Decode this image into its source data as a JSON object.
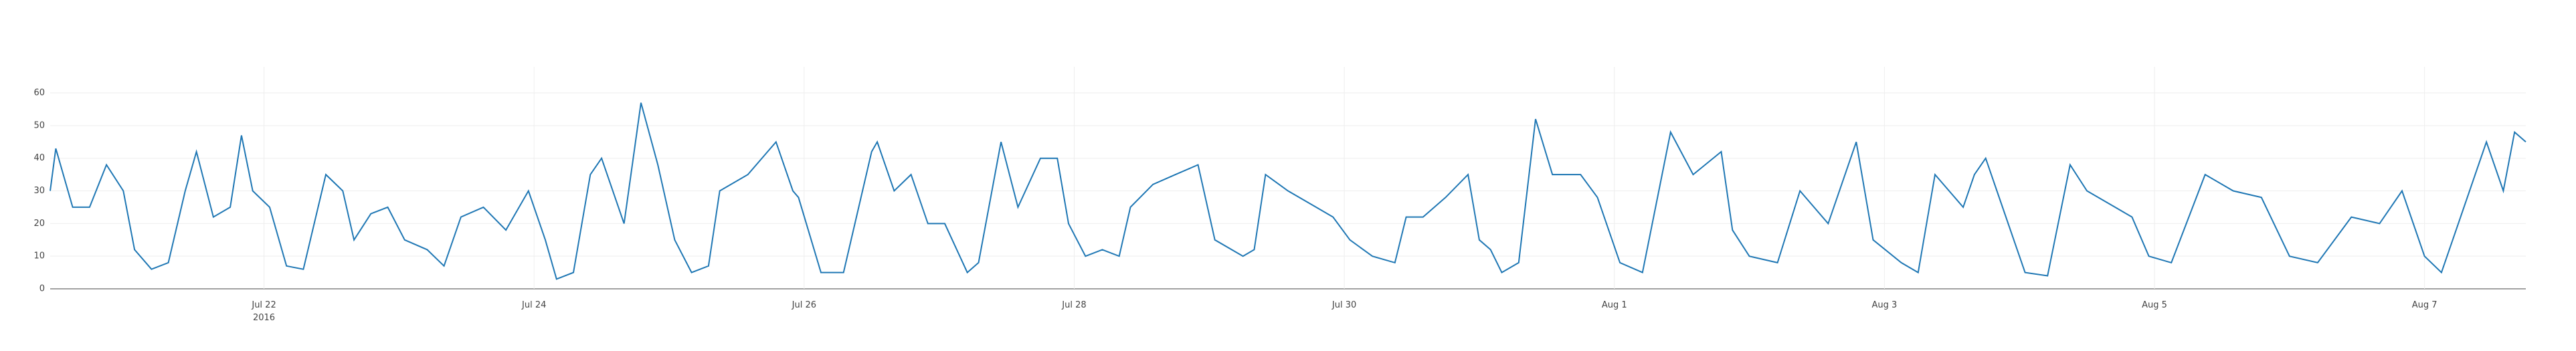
{
  "chart_data": {
    "type": "line",
    "color": "#1f77b4",
    "grid": true,
    "x": [
      "2016-07-20 10:00",
      "2016-07-20 11:00",
      "2016-07-20 14:00",
      "2016-07-20 17:00",
      "2016-07-20 20:00",
      "2016-07-20 23:00",
      "2016-07-21 01:00",
      "2016-07-21 04:00",
      "2016-07-21 07:00",
      "2016-07-21 10:00",
      "2016-07-21 12:00",
      "2016-07-21 15:00",
      "2016-07-21 18:00",
      "2016-07-21 20:00",
      "2016-07-21 22:00",
      "2016-07-22 01:00",
      "2016-07-22 04:00",
      "2016-07-22 07:00",
      "2016-07-22 11:00",
      "2016-07-22 14:00",
      "2016-07-22 16:00",
      "2016-07-22 19:00",
      "2016-07-22 22:00",
      "2016-07-23 01:00",
      "2016-07-23 05:00",
      "2016-07-23 08:00",
      "2016-07-23 11:00",
      "2016-07-23 15:00",
      "2016-07-23 19:00",
      "2016-07-23 23:00",
      "2016-07-24 02:00",
      "2016-07-24 04:00",
      "2016-07-24 07:00",
      "2016-07-24 10:00",
      "2016-07-24 12:00",
      "2016-07-24 16:00",
      "2016-07-24 19:00",
      "2016-07-24 22:00",
      "2016-07-25 01:00",
      "2016-07-25 04:00",
      "2016-07-25 07:00",
      "2016-07-25 09:00",
      "2016-07-25 14:00",
      "2016-07-25 19:00",
      "2016-07-25 22:00",
      "2016-07-25 23:00",
      "2016-07-26 03:00",
      "2016-07-26 07:00",
      "2016-07-26 12:00",
      "2016-07-26 13:00",
      "2016-07-26 16:00",
      "2016-07-26 19:00",
      "2016-07-26 22:00",
      "2016-07-27 01:00",
      "2016-07-27 05:00",
      "2016-07-27 07:00",
      "2016-07-27 11:00",
      "2016-07-27 14:00",
      "2016-07-27 18:00",
      "2016-07-27 21:00",
      "2016-07-27 23:00",
      "2016-07-28 02:00",
      "2016-07-28 05:00",
      "2016-07-28 08:00",
      "2016-07-28 10:00",
      "2016-07-28 14:00",
      "2016-07-28 18:00",
      "2016-07-28 22:00",
      "2016-07-29 01:00",
      "2016-07-29 06:00",
      "2016-07-29 08:00",
      "2016-07-29 10:00",
      "2016-07-29 14:00",
      "2016-07-29 19:00",
      "2016-07-29 22:00",
      "2016-07-30 01:00",
      "2016-07-30 05:00",
      "2016-07-30 09:00",
      "2016-07-30 11:00",
      "2016-07-30 14:00",
      "2016-07-30 18:00",
      "2016-07-30 22:00",
      "2016-07-31 00:00",
      "2016-07-31 02:00",
      "2016-07-31 04:00",
      "2016-07-31 07:00",
      "2016-07-31 10:00",
      "2016-07-31 13:00",
      "2016-07-31 18:00",
      "2016-07-31 21:00",
      "2016-08-01 01:00",
      "2016-08-01 05:00",
      "2016-08-01 10:00",
      "2016-08-01 14:00",
      "2016-08-01 19:00",
      "2016-08-01 21:00",
      "2016-08-02 00:00",
      "2016-08-02 05:00",
      "2016-08-02 09:00",
      "2016-08-02 14:00",
      "2016-08-02 19:00",
      "2016-08-02 22:00",
      "2016-08-03 03:00",
      "2016-08-03 06:00",
      "2016-08-03 09:00",
      "2016-08-03 14:00",
      "2016-08-03 16:00",
      "2016-08-03 18:00",
      "2016-08-03 20:00",
      "2016-08-04 01:00",
      "2016-08-04 05:00",
      "2016-08-04 09:00",
      "2016-08-04 12:00",
      "2016-08-04 17:00",
      "2016-08-04 20:00",
      "2016-08-04 23:00",
      "2016-08-05 03:00",
      "2016-08-05 09:00",
      "2016-08-05 14:00",
      "2016-08-05 19:00",
      "2016-08-06 00:00",
      "2016-08-06 05:00",
      "2016-08-06 11:00",
      "2016-08-06 16:00",
      "2016-08-06 20:00",
      "2016-08-07 00:00",
      "2016-08-07 03:00",
      "2016-08-07 06:00",
      "2016-08-07 11:00",
      "2016-08-07 14:00",
      "2016-08-07 16:00",
      "2016-08-07 18:00"
    ],
    "values": [
      30,
      43,
      25,
      25,
      38,
      30,
      12,
      6,
      8,
      30,
      42,
      22,
      25,
      47,
      30,
      25,
      7,
      6,
      35,
      30,
      15,
      23,
      25,
      15,
      12,
      7,
      22,
      25,
      18,
      30,
      15,
      3,
      5,
      35,
      40,
      20,
      57,
      38,
      15,
      5,
      7,
      30,
      35,
      45,
      30,
      28,
      5,
      5,
      42,
      45,
      30,
      35,
      20,
      20,
      5,
      8,
      45,
      25,
      40,
      40,
      20,
      10,
      12,
      10,
      25,
      32,
      35,
      38,
      15,
      10,
      12,
      35,
      30,
      25,
      22,
      15,
      10,
      8,
      22,
      22,
      28,
      35,
      15,
      12,
      5,
      8,
      52,
      35,
      35,
      28,
      8,
      5,
      48,
      35,
      42,
      18,
      10,
      8,
      30,
      20,
      45,
      15,
      8,
      5,
      35,
      25,
      35,
      40,
      30,
      5,
      4,
      38,
      30,
      25,
      22,
      10,
      8,
      35,
      30,
      28,
      10,
      8,
      22,
      20,
      30,
      10,
      5,
      20,
      45,
      30,
      48,
      45
    ],
    "xlim": [
      "2016-07-20 10:00",
      "2016-08-07 18:00"
    ],
    "xticks": [
      {
        "value": "2016-07-22 00:00",
        "label": "Jul 22\n2016"
      },
      {
        "value": "2016-07-24 00:00",
        "label": "Jul 24"
      },
      {
        "value": "2016-07-26 00:00",
        "label": "Jul 26"
      },
      {
        "value": "2016-07-28 00:00",
        "label": "Jul 28"
      },
      {
        "value": "2016-07-30 00:00",
        "label": "Jul 30"
      },
      {
        "value": "2016-08-01 00:00",
        "label": "Aug 1"
      },
      {
        "value": "2016-08-03 00:00",
        "label": "Aug 3"
      },
      {
        "value": "2016-08-05 00:00",
        "label": "Aug 5"
      },
      {
        "value": "2016-08-07 00:00",
        "label": "Aug 7"
      }
    ],
    "ylim": [
      0,
      68
    ],
    "yticks": [
      0,
      10,
      20,
      30,
      40,
      50,
      60
    ]
  }
}
